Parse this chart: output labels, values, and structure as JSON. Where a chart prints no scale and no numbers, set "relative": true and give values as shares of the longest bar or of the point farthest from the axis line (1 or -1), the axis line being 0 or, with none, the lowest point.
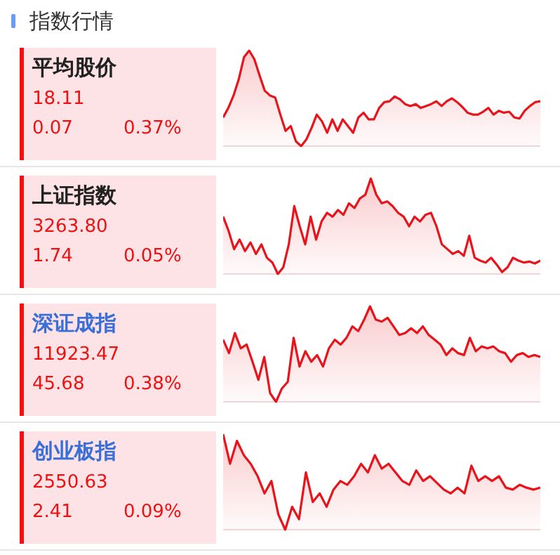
{
  "chart_data": [
    {
      "type": "other",
      "title": "指数行情"
    },
    {
      "type": "area",
      "title": "平均股价",
      "annotations": [
        "18.11",
        "0.07",
        "0.37%"
      ],
      "relative": true,
      "categories": [
        null,
        null,
        null,
        null,
        null,
        null,
        null,
        null,
        null,
        null,
        null,
        null,
        null,
        null,
        null,
        null,
        null,
        null,
        null,
        null,
        null,
        null,
        null,
        null,
        null,
        null,
        null,
        null,
        null,
        null,
        null,
        null,
        null,
        null,
        null,
        null,
        null,
        null,
        null,
        null,
        null,
        null,
        null,
        null,
        null,
        null,
        null,
        null,
        null,
        null,
        null,
        null,
        null,
        null,
        null,
        null,
        null,
        null,
        null,
        null,
        null,
        null
      ],
      "series": [
        {
          "color": "#e8141b",
          "values": [
            0.3,
            0.4,
            0.53,
            0.7,
            0.93,
            1,
            0.91,
            0.74,
            0.58,
            0.53,
            0.51,
            0.33,
            0.16,
            0.21,
            0.05,
            0,
            0.07,
            0.19,
            0.33,
            0.26,
            0.14,
            0.28,
            0.16,
            0.28,
            0.21,
            0.14,
            0.3,
            0.35,
            0.28,
            0.28,
            0.4,
            0.46,
            0.47,
            0.52,
            0.49,
            0.44,
            0.42,
            0.44,
            0.4,
            0.42,
            0.44,
            0.47,
            0.42,
            0.47,
            0.5,
            0.46,
            0.41,
            0.35,
            0.33,
            0.33,
            0.36,
            0.4,
            0.33,
            0.37,
            0.35,
            0.36,
            0.3,
            0.29,
            0.37,
            0.42,
            0.46,
            0.47
          ]
        }
      ]
    },
    {
      "type": "area",
      "title": "上证指数",
      "annotations": [
        "3263.80",
        "1.74",
        "0.05%"
      ],
      "relative": true,
      "categories": [
        null,
        null,
        null,
        null,
        null,
        null,
        null,
        null,
        null,
        null,
        null,
        null,
        null,
        null,
        null,
        null,
        null,
        null,
        null,
        null,
        null,
        null,
        null,
        null,
        null,
        null,
        null,
        null,
        null,
        null,
        null,
        null,
        null,
        null,
        null,
        null,
        null,
        null,
        null,
        null,
        null,
        null,
        null,
        null,
        null,
        null,
        null,
        null,
        null,
        null,
        null,
        null,
        null,
        null,
        null,
        null,
        null,
        null,
        null
      ],
      "series": [
        {
          "color": "#e8141b",
          "values": [
            0.6,
            0.45,
            0.26,
            0.36,
            0.24,
            0.33,
            0.21,
            0.31,
            0.17,
            0.12,
            0,
            0.07,
            0.31,
            0.71,
            0.5,
            0.31,
            0.6,
            0.36,
            0.55,
            0.64,
            0.6,
            0.67,
            0.62,
            0.74,
            0.69,
            0.79,
            0.83,
            1,
            0.83,
            0.74,
            0.76,
            0.71,
            0.64,
            0.6,
            0.5,
            0.6,
            0.55,
            0.62,
            0.64,
            0.5,
            0.31,
            0.26,
            0.21,
            0.24,
            0.19,
            0.4,
            0.17,
            0.14,
            0.12,
            0.17,
            0.1,
            0.02,
            0.07,
            0.17,
            0.14,
            0.12,
            0.13,
            0.11,
            0.14
          ]
        }
      ]
    },
    {
      "type": "area",
      "title": "深证成指",
      "annotations": [
        "11923.47",
        "45.68",
        "0.38%"
      ],
      "relative": true,
      "categories": [
        null,
        null,
        null,
        null,
        null,
        null,
        null,
        null,
        null,
        null,
        null,
        null,
        null,
        null,
        null,
        null,
        null,
        null,
        null,
        null,
        null,
        null,
        null,
        null,
        null,
        null,
        null,
        null,
        null,
        null,
        null,
        null,
        null,
        null,
        null,
        null,
        null,
        null,
        null,
        null,
        null,
        null,
        null,
        null,
        null,
        null,
        null,
        null,
        null,
        null,
        null,
        null,
        null,
        null,
        null
      ],
      "series": [
        {
          "color": "#e8141b",
          "values": [
            0.65,
            0.51,
            0.72,
            0.56,
            0.6,
            0.42,
            0.23,
            0.47,
            0.09,
            0,
            0.14,
            0.21,
            0.67,
            0.37,
            0.53,
            0.42,
            0.49,
            0.37,
            0.56,
            0.65,
            0.6,
            0.67,
            0.79,
            0.74,
            0.86,
            1,
            0.86,
            0.84,
            0.88,
            0.79,
            0.7,
            0.72,
            0.77,
            0.72,
            0.79,
            0.7,
            0.65,
            0.6,
            0.49,
            0.56,
            0.51,
            0.49,
            0.67,
            0.53,
            0.58,
            0.56,
            0.58,
            0.53,
            0.51,
            0.42,
            0.49,
            0.51,
            0.47,
            0.49,
            0.47
          ]
        }
      ]
    },
    {
      "type": "area",
      "title": "创业板指",
      "annotations": [
        "2550.63",
        "2.41",
        "0.09%"
      ],
      "relative": true,
      "categories": [
        null,
        null,
        null,
        null,
        null,
        null,
        null,
        null,
        null,
        null,
        null,
        null,
        null,
        null,
        null,
        null,
        null,
        null,
        null,
        null,
        null,
        null,
        null,
        null,
        null,
        null,
        null,
        null,
        null,
        null,
        null,
        null,
        null,
        null,
        null,
        null,
        null,
        null,
        null,
        null,
        null,
        null,
        null,
        null,
        null,
        null,
        null
      ],
      "series": [
        {
          "color": "#e8141b",
          "values": [
            1,
            0.69,
            0.93,
            0.78,
            0.69,
            0.56,
            0.38,
            0.51,
            0.16,
            0,
            0.24,
            0.11,
            0.6,
            0.29,
            0.38,
            0.24,
            0.42,
            0.51,
            0.47,
            0.56,
            0.69,
            0.6,
            0.78,
            0.64,
            0.69,
            0.6,
            0.51,
            0.47,
            0.62,
            0.51,
            0.56,
            0.49,
            0.42,
            0.38,
            0.44,
            0.38,
            0.67,
            0.51,
            0.56,
            0.51,
            0.56,
            0.44,
            0.42,
            0.47,
            0.44,
            0.42,
            0.44
          ]
        }
      ]
    }
  ]
}
